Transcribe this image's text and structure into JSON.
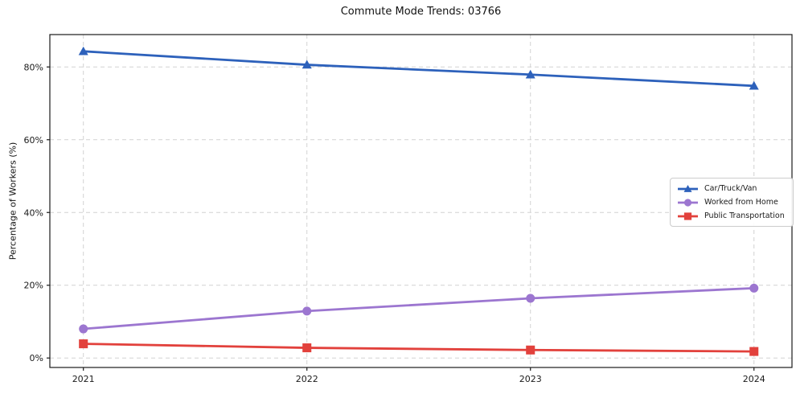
{
  "chart_data": {
    "type": "line",
    "title": "Commute Mode Trends: 03766",
    "xlabel": "",
    "ylabel": "Percentage of Workers (%)",
    "x": [
      2021,
      2022,
      2023,
      2024
    ],
    "x_tick_labels": [
      "2021",
      "2022",
      "2023",
      "2024"
    ],
    "y_ticks": [
      0,
      20,
      40,
      60,
      80
    ],
    "y_tick_labels": [
      "0%",
      "20%",
      "40%",
      "60%",
      "80%"
    ],
    "xlim": [
      2020.85,
      2024.17
    ],
    "ylim": [
      -2.6,
      88.9
    ],
    "grid": {
      "show": true,
      "style": "dashed",
      "color": "#d2d2d2",
      "both_axes": true
    },
    "legend": {
      "position": "center-right",
      "border_color": "#cccccc"
    },
    "axis_color": "#1a1a1a",
    "series": [
      {
        "name": "Car/Truck/Van",
        "color": "#2d61bb",
        "marker": "triangle",
        "values": [
          84.3,
          80.6,
          77.9,
          74.8
        ]
      },
      {
        "name": "Worked from Home",
        "color": "#9c76d0",
        "marker": "circle",
        "values": [
          8.0,
          12.9,
          16.4,
          19.2
        ]
      },
      {
        "name": "Public Transportation",
        "color": "#e2413c",
        "marker": "square",
        "values": [
          3.9,
          2.8,
          2.2,
          1.8
        ]
      }
    ]
  }
}
